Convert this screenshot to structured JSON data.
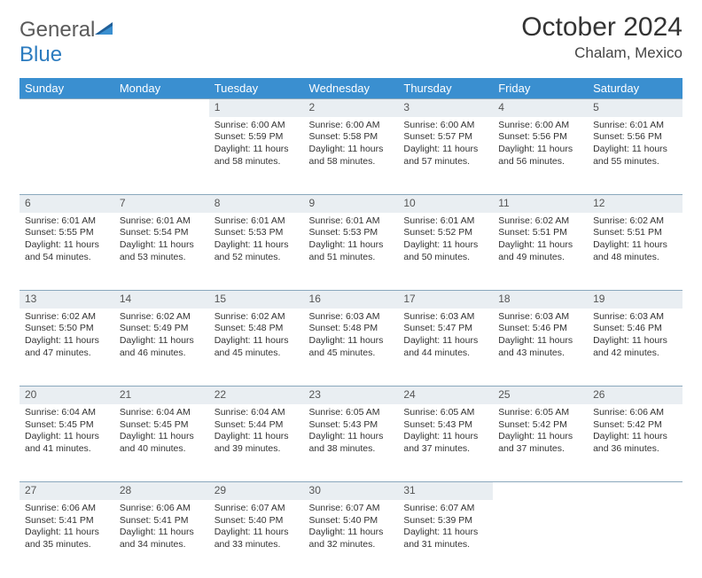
{
  "brand": {
    "part1": "General",
    "part2": "Blue"
  },
  "colors": {
    "header_bg": "#3a8fd0",
    "header_text": "#ffffff",
    "daynum_bg": "#e9eef2",
    "border": "#8aa8bd",
    "logo_blue": "#2b7bbf",
    "logo_gray": "#5a5a5a"
  },
  "title": "October 2024",
  "location": "Chalam, Mexico",
  "weekdays": [
    "Sunday",
    "Monday",
    "Tuesday",
    "Wednesday",
    "Thursday",
    "Friday",
    "Saturday"
  ],
  "weeks": [
    {
      "nums": [
        "",
        "",
        "1",
        "2",
        "3",
        "4",
        "5"
      ],
      "cells": [
        null,
        null,
        {
          "sunrise": "Sunrise: 6:00 AM",
          "sunset": "Sunset: 5:59 PM",
          "day1": "Daylight: 11 hours",
          "day2": "and 58 minutes."
        },
        {
          "sunrise": "Sunrise: 6:00 AM",
          "sunset": "Sunset: 5:58 PM",
          "day1": "Daylight: 11 hours",
          "day2": "and 58 minutes."
        },
        {
          "sunrise": "Sunrise: 6:00 AM",
          "sunset": "Sunset: 5:57 PM",
          "day1": "Daylight: 11 hours",
          "day2": "and 57 minutes."
        },
        {
          "sunrise": "Sunrise: 6:00 AM",
          "sunset": "Sunset: 5:56 PM",
          "day1": "Daylight: 11 hours",
          "day2": "and 56 minutes."
        },
        {
          "sunrise": "Sunrise: 6:01 AM",
          "sunset": "Sunset: 5:56 PM",
          "day1": "Daylight: 11 hours",
          "day2": "and 55 minutes."
        }
      ]
    },
    {
      "nums": [
        "6",
        "7",
        "8",
        "9",
        "10",
        "11",
        "12"
      ],
      "cells": [
        {
          "sunrise": "Sunrise: 6:01 AM",
          "sunset": "Sunset: 5:55 PM",
          "day1": "Daylight: 11 hours",
          "day2": "and 54 minutes."
        },
        {
          "sunrise": "Sunrise: 6:01 AM",
          "sunset": "Sunset: 5:54 PM",
          "day1": "Daylight: 11 hours",
          "day2": "and 53 minutes."
        },
        {
          "sunrise": "Sunrise: 6:01 AM",
          "sunset": "Sunset: 5:53 PM",
          "day1": "Daylight: 11 hours",
          "day2": "and 52 minutes."
        },
        {
          "sunrise": "Sunrise: 6:01 AM",
          "sunset": "Sunset: 5:53 PM",
          "day1": "Daylight: 11 hours",
          "day2": "and 51 minutes."
        },
        {
          "sunrise": "Sunrise: 6:01 AM",
          "sunset": "Sunset: 5:52 PM",
          "day1": "Daylight: 11 hours",
          "day2": "and 50 minutes."
        },
        {
          "sunrise": "Sunrise: 6:02 AM",
          "sunset": "Sunset: 5:51 PM",
          "day1": "Daylight: 11 hours",
          "day2": "and 49 minutes."
        },
        {
          "sunrise": "Sunrise: 6:02 AM",
          "sunset": "Sunset: 5:51 PM",
          "day1": "Daylight: 11 hours",
          "day2": "and 48 minutes."
        }
      ]
    },
    {
      "nums": [
        "13",
        "14",
        "15",
        "16",
        "17",
        "18",
        "19"
      ],
      "cells": [
        {
          "sunrise": "Sunrise: 6:02 AM",
          "sunset": "Sunset: 5:50 PM",
          "day1": "Daylight: 11 hours",
          "day2": "and 47 minutes."
        },
        {
          "sunrise": "Sunrise: 6:02 AM",
          "sunset": "Sunset: 5:49 PM",
          "day1": "Daylight: 11 hours",
          "day2": "and 46 minutes."
        },
        {
          "sunrise": "Sunrise: 6:02 AM",
          "sunset": "Sunset: 5:48 PM",
          "day1": "Daylight: 11 hours",
          "day2": "and 45 minutes."
        },
        {
          "sunrise": "Sunrise: 6:03 AM",
          "sunset": "Sunset: 5:48 PM",
          "day1": "Daylight: 11 hours",
          "day2": "and 45 minutes."
        },
        {
          "sunrise": "Sunrise: 6:03 AM",
          "sunset": "Sunset: 5:47 PM",
          "day1": "Daylight: 11 hours",
          "day2": "and 44 minutes."
        },
        {
          "sunrise": "Sunrise: 6:03 AM",
          "sunset": "Sunset: 5:46 PM",
          "day1": "Daylight: 11 hours",
          "day2": "and 43 minutes."
        },
        {
          "sunrise": "Sunrise: 6:03 AM",
          "sunset": "Sunset: 5:46 PM",
          "day1": "Daylight: 11 hours",
          "day2": "and 42 minutes."
        }
      ]
    },
    {
      "nums": [
        "20",
        "21",
        "22",
        "23",
        "24",
        "25",
        "26"
      ],
      "cells": [
        {
          "sunrise": "Sunrise: 6:04 AM",
          "sunset": "Sunset: 5:45 PM",
          "day1": "Daylight: 11 hours",
          "day2": "and 41 minutes."
        },
        {
          "sunrise": "Sunrise: 6:04 AM",
          "sunset": "Sunset: 5:45 PM",
          "day1": "Daylight: 11 hours",
          "day2": "and 40 minutes."
        },
        {
          "sunrise": "Sunrise: 6:04 AM",
          "sunset": "Sunset: 5:44 PM",
          "day1": "Daylight: 11 hours",
          "day2": "and 39 minutes."
        },
        {
          "sunrise": "Sunrise: 6:05 AM",
          "sunset": "Sunset: 5:43 PM",
          "day1": "Daylight: 11 hours",
          "day2": "and 38 minutes."
        },
        {
          "sunrise": "Sunrise: 6:05 AM",
          "sunset": "Sunset: 5:43 PM",
          "day1": "Daylight: 11 hours",
          "day2": "and 37 minutes."
        },
        {
          "sunrise": "Sunrise: 6:05 AM",
          "sunset": "Sunset: 5:42 PM",
          "day1": "Daylight: 11 hours",
          "day2": "and 37 minutes."
        },
        {
          "sunrise": "Sunrise: 6:06 AM",
          "sunset": "Sunset: 5:42 PM",
          "day1": "Daylight: 11 hours",
          "day2": "and 36 minutes."
        }
      ]
    },
    {
      "nums": [
        "27",
        "28",
        "29",
        "30",
        "31",
        "",
        ""
      ],
      "cells": [
        {
          "sunrise": "Sunrise: 6:06 AM",
          "sunset": "Sunset: 5:41 PM",
          "day1": "Daylight: 11 hours",
          "day2": "and 35 minutes."
        },
        {
          "sunrise": "Sunrise: 6:06 AM",
          "sunset": "Sunset: 5:41 PM",
          "day1": "Daylight: 11 hours",
          "day2": "and 34 minutes."
        },
        {
          "sunrise": "Sunrise: 6:07 AM",
          "sunset": "Sunset: 5:40 PM",
          "day1": "Daylight: 11 hours",
          "day2": "and 33 minutes."
        },
        {
          "sunrise": "Sunrise: 6:07 AM",
          "sunset": "Sunset: 5:40 PM",
          "day1": "Daylight: 11 hours",
          "day2": "and 32 minutes."
        },
        {
          "sunrise": "Sunrise: 6:07 AM",
          "sunset": "Sunset: 5:39 PM",
          "day1": "Daylight: 11 hours",
          "day2": "and 31 minutes."
        },
        null,
        null
      ]
    }
  ]
}
